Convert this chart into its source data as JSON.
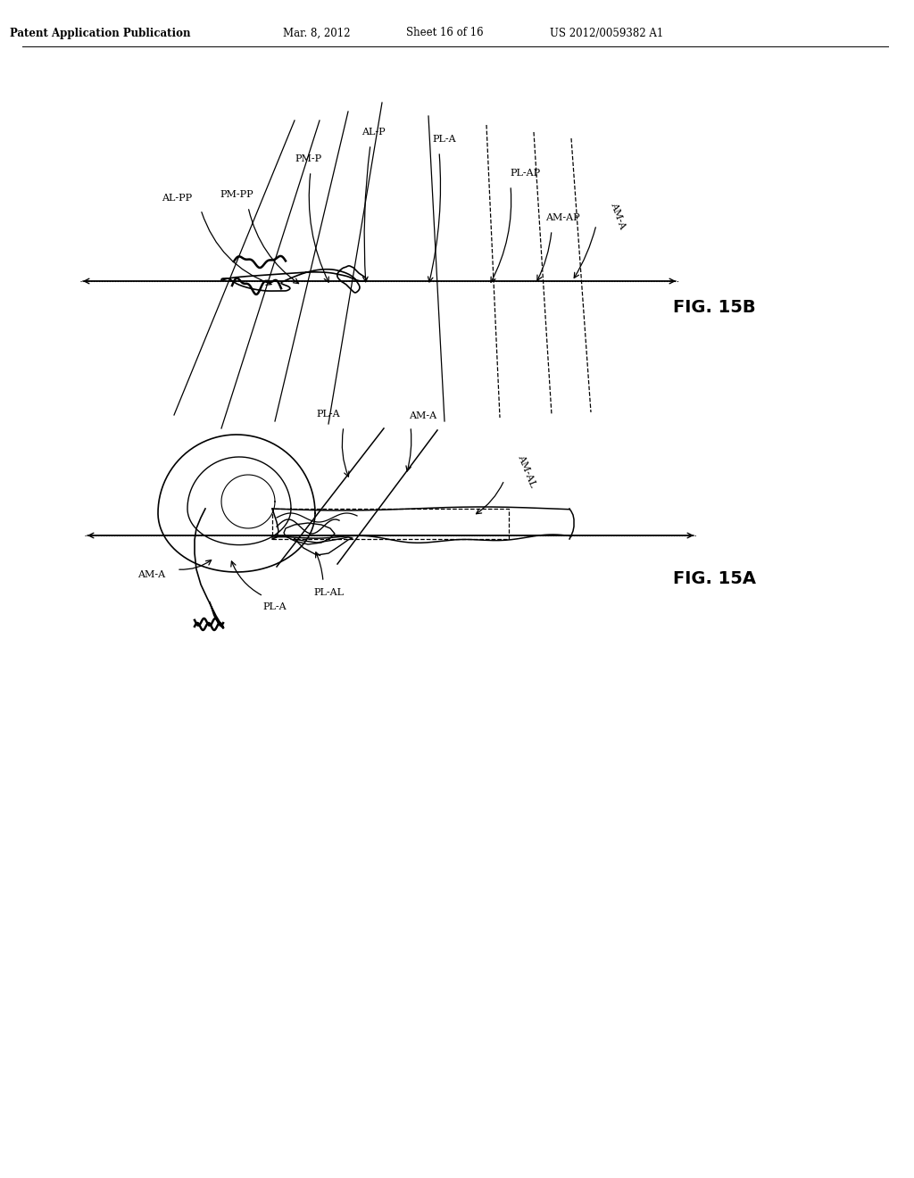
{
  "bg_color": "#ffffff",
  "header_text": "Patent Application Publication",
  "header_date": "Mar. 8, 2012",
  "header_sheet": "Sheet 16 of 16",
  "header_patent": "US 2012/0059382 A1",
  "fig_top_label": "FIG. 15B",
  "fig_bottom_label": "FIG. 15A"
}
